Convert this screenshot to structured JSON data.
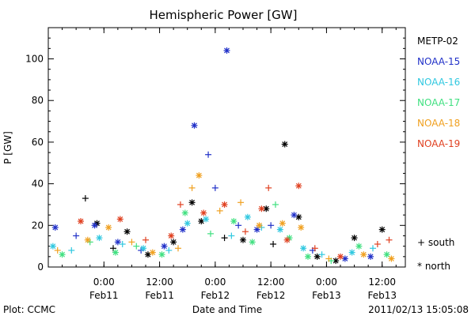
{
  "chart_data": {
    "type": "scatter",
    "title": "Hemispheric Power [GW]",
    "xlabel": "Date and Time",
    "ylabel": "P [GW]",
    "ylim": [
      0,
      115
    ],
    "yticks": [
      0,
      20,
      40,
      60,
      80,
      100
    ],
    "xlim": [
      "2011-02-10 12:00",
      "2011-02-13 17:00"
    ],
    "xticks": [
      {
        "t": "2011-02-11 00:00",
        "label1": "0:00",
        "label2": "Feb11"
      },
      {
        "t": "2011-02-11 12:00",
        "label1": "12:00",
        "label2": "Feb11"
      },
      {
        "t": "2011-02-12 00:00",
        "label1": "0:00",
        "label2": "Feb12"
      },
      {
        "t": "2011-02-12 12:00",
        "label1": "12:00",
        "label2": "Feb12"
      },
      {
        "t": "2011-02-13 00:00",
        "label1": "0:00",
        "label2": "Feb13"
      },
      {
        "t": "2011-02-13 12:00",
        "label1": "12:00",
        "label2": "Feb13"
      }
    ],
    "grid": false,
    "legend_position": "right",
    "series": [
      {
        "name": "METP-02",
        "color": "#000000",
        "points": [
          [
            "2011-02-10 20:00",
            33,
            "south"
          ],
          [
            "2011-02-10 22:30",
            21,
            "north"
          ],
          [
            "2011-02-11 02:00",
            9,
            "south"
          ],
          [
            "2011-02-11 05:00",
            17,
            "north"
          ],
          [
            "2011-02-11 09:30",
            6,
            "north"
          ],
          [
            "2011-02-11 15:00",
            12,
            "north"
          ],
          [
            "2011-02-11 19:00",
            31,
            "north"
          ],
          [
            "2011-02-11 21:00",
            22,
            "north"
          ],
          [
            "2011-02-12 02:00",
            14,
            "south"
          ],
          [
            "2011-02-12 06:00",
            13,
            "north"
          ],
          [
            "2011-02-12 11:00",
            28,
            "north"
          ],
          [
            "2011-02-12 12:30",
            11,
            "south"
          ],
          [
            "2011-02-12 15:00",
            59,
            "north"
          ],
          [
            "2011-02-12 18:00",
            24,
            "north"
          ],
          [
            "2011-02-12 22:00",
            5,
            "north"
          ],
          [
            "2011-02-13 02:00",
            3,
            "north"
          ],
          [
            "2011-02-13 06:00",
            14,
            "north"
          ],
          [
            "2011-02-13 12:00",
            18,
            "north"
          ]
        ]
      },
      {
        "name": "NOAA-15",
        "color": "#2030c8",
        "points": [
          [
            "2011-02-10 13:30",
            19,
            "north"
          ],
          [
            "2011-02-10 18:00",
            15,
            "south"
          ],
          [
            "2011-02-10 22:00",
            20,
            "north"
          ],
          [
            "2011-02-11 03:00",
            12,
            "north"
          ],
          [
            "2011-02-11 08:00",
            8,
            "south"
          ],
          [
            "2011-02-11 13:00",
            10,
            "north"
          ],
          [
            "2011-02-11 17:00",
            18,
            "north"
          ],
          [
            "2011-02-11 19:30",
            68,
            "north"
          ],
          [
            "2011-02-11 22:30",
            54,
            "south"
          ],
          [
            "2011-02-12 00:00",
            38,
            "south"
          ],
          [
            "2011-02-12 02:30",
            104,
            "north"
          ],
          [
            "2011-02-12 05:00",
            20,
            "south"
          ],
          [
            "2011-02-12 09:00",
            18,
            "north"
          ],
          [
            "2011-02-12 12:00",
            20,
            "south"
          ],
          [
            "2011-02-12 17:00",
            25,
            "north"
          ],
          [
            "2011-02-12 21:00",
            8,
            "south"
          ],
          [
            "2011-02-13 04:00",
            4,
            "north"
          ],
          [
            "2011-02-13 09:30",
            5,
            "north"
          ]
        ]
      },
      {
        "name": "NOAA-16",
        "color": "#30c8e0",
        "points": [
          [
            "2011-02-10 13:00",
            10,
            "north"
          ],
          [
            "2011-02-10 17:00",
            8,
            "south"
          ],
          [
            "2011-02-10 23:00",
            14,
            "north"
          ],
          [
            "2011-02-11 04:00",
            11,
            "south"
          ],
          [
            "2011-02-11 08:30",
            9,
            "north"
          ],
          [
            "2011-02-11 14:00",
            8,
            "south"
          ],
          [
            "2011-02-11 18:00",
            21,
            "north"
          ],
          [
            "2011-02-11 22:00",
            23,
            "north"
          ],
          [
            "2011-02-12 03:30",
            15,
            "south"
          ],
          [
            "2011-02-12 07:00",
            24,
            "north"
          ],
          [
            "2011-02-12 10:00",
            19,
            "south"
          ],
          [
            "2011-02-12 14:00",
            18,
            "north"
          ],
          [
            "2011-02-12 19:00",
            9,
            "north"
          ],
          [
            "2011-02-12 23:00",
            6,
            "south"
          ],
          [
            "2011-02-13 05:30",
            7,
            "north"
          ],
          [
            "2011-02-13 10:00",
            9,
            "south"
          ]
        ]
      },
      {
        "name": "NOAA-17",
        "color": "#40e080",
        "points": [
          [
            "2011-02-10 15:00",
            6,
            "north"
          ],
          [
            "2011-02-10 21:00",
            12,
            "south"
          ],
          [
            "2011-02-11 02:30",
            7,
            "north"
          ],
          [
            "2011-02-11 07:00",
            10,
            "south"
          ],
          [
            "2011-02-11 12:30",
            6,
            "north"
          ],
          [
            "2011-02-11 17:30",
            26,
            "north"
          ],
          [
            "2011-02-11 23:00",
            16,
            "south"
          ],
          [
            "2011-02-12 04:00",
            22,
            "north"
          ],
          [
            "2011-02-12 08:00",
            12,
            "north"
          ],
          [
            "2011-02-12 13:00",
            30,
            "south"
          ],
          [
            "2011-02-12 16:00",
            14,
            "north"
          ],
          [
            "2011-02-12 20:00",
            5,
            "north"
          ],
          [
            "2011-02-13 01:00",
            3,
            "south"
          ],
          [
            "2011-02-13 07:00",
            10,
            "north"
          ],
          [
            "2011-02-13 13:00",
            6,
            "north"
          ]
        ]
      },
      {
        "name": "NOAA-18",
        "color": "#f0a020",
        "points": [
          [
            "2011-02-10 14:00",
            8,
            "south"
          ],
          [
            "2011-02-10 20:30",
            13,
            "north"
          ],
          [
            "2011-02-11 01:00",
            19,
            "north"
          ],
          [
            "2011-02-11 06:00",
            12,
            "south"
          ],
          [
            "2011-02-11 10:30",
            7,
            "north"
          ],
          [
            "2011-02-11 16:00",
            9,
            "south"
          ],
          [
            "2011-02-11 19:00",
            38,
            "south"
          ],
          [
            "2011-02-11 20:30",
            44,
            "north"
          ],
          [
            "2011-02-12 01:00",
            27,
            "south"
          ],
          [
            "2011-02-12 05:30",
            31,
            "south"
          ],
          [
            "2011-02-12 09:30",
            20,
            "north"
          ],
          [
            "2011-02-12 14:30",
            21,
            "north"
          ],
          [
            "2011-02-12 18:30",
            19,
            "north"
          ],
          [
            "2011-02-13 00:30",
            4,
            "south"
          ],
          [
            "2011-02-13 08:00",
            6,
            "north"
          ],
          [
            "2011-02-13 14:00",
            4,
            "north"
          ]
        ]
      },
      {
        "name": "NOAA-19",
        "color": "#e04020",
        "points": [
          [
            "2011-02-10 19:00",
            22,
            "north"
          ],
          [
            "2011-02-11 03:30",
            23,
            "north"
          ],
          [
            "2011-02-11 09:00",
            13,
            "south"
          ],
          [
            "2011-02-11 14:30",
            15,
            "north"
          ],
          [
            "2011-02-11 16:30",
            30,
            "south"
          ],
          [
            "2011-02-11 21:30",
            26,
            "north"
          ],
          [
            "2011-02-12 02:00",
            30,
            "north"
          ],
          [
            "2011-02-12 06:30",
            17,
            "south"
          ],
          [
            "2011-02-12 10:00",
            28,
            "north"
          ],
          [
            "2011-02-12 11:30",
            38,
            "south"
          ],
          [
            "2011-02-12 15:30",
            13,
            "north"
          ],
          [
            "2011-02-12 18:00",
            39,
            "north"
          ],
          [
            "2011-02-12 21:30",
            9,
            "south"
          ],
          [
            "2011-02-13 03:00",
            5,
            "north"
          ],
          [
            "2011-02-13 11:00",
            11,
            "south"
          ],
          [
            "2011-02-13 13:30",
            13,
            "south"
          ]
        ]
      }
    ],
    "marker_legend": [
      {
        "symbol": "+",
        "label": "south"
      },
      {
        "symbol": "*",
        "label": "north"
      }
    ]
  },
  "footer": {
    "left": "Plot: CCMC",
    "right": "2011/02/13 15:05:08"
  }
}
